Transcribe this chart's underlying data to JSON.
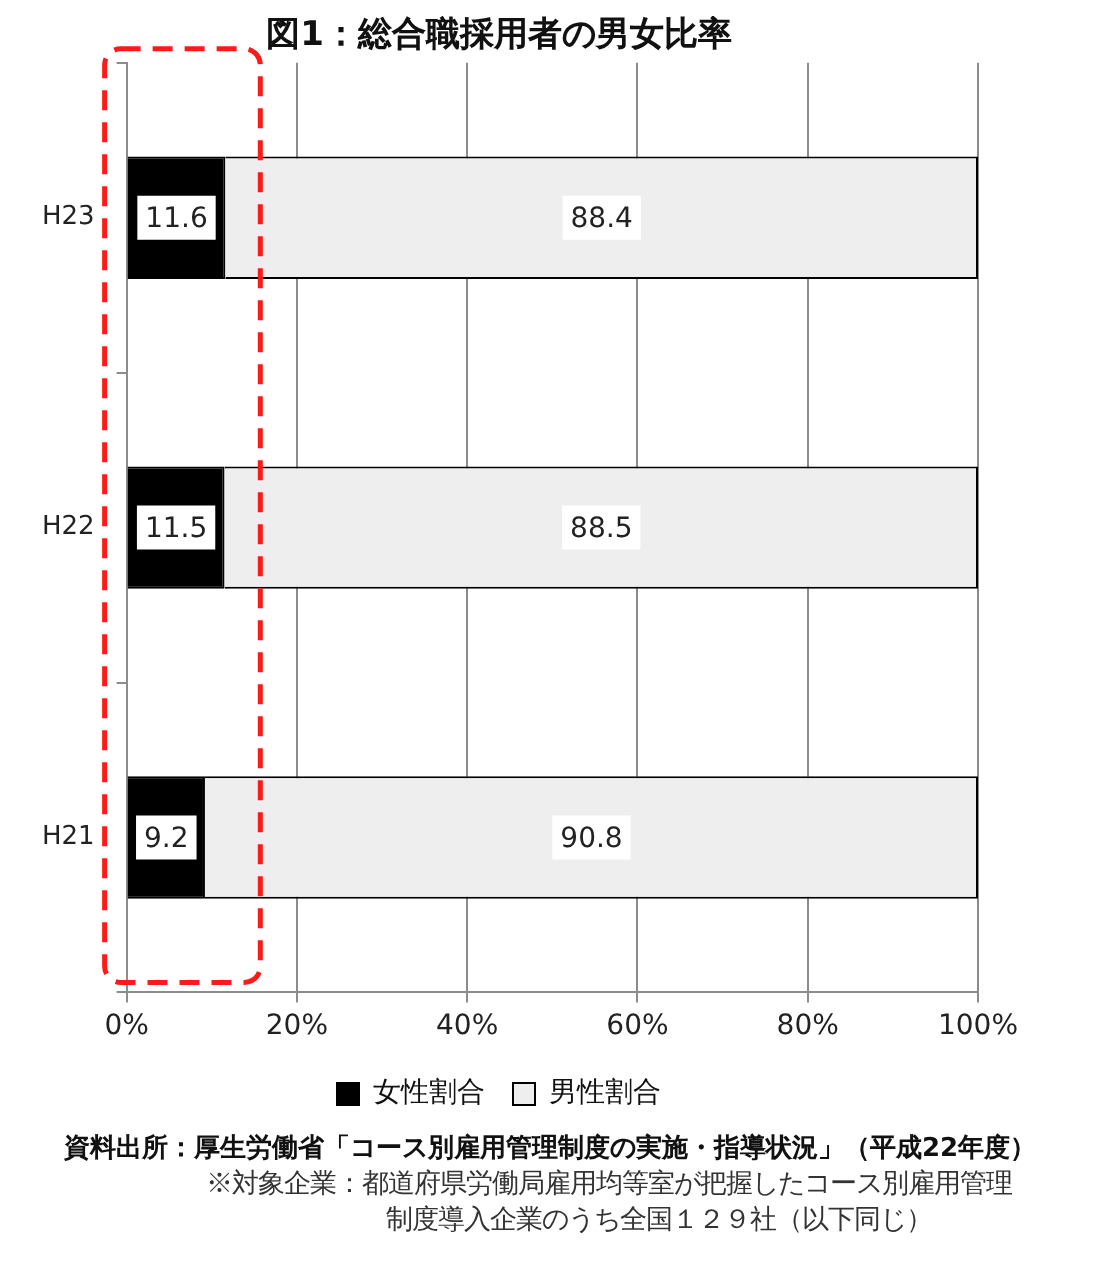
{
  "chart_data": {
    "type": "bar",
    "orientation": "horizontal",
    "stacked": true,
    "title": "図1：総合職採用者の男女比率",
    "categories": [
      "H23",
      "H22",
      "H21"
    ],
    "series": [
      {
        "name": "女性割合",
        "color": "#000000",
        "values": [
          11.6,
          11.5,
          9.2
        ]
      },
      {
        "name": "男性割合",
        "color": "#eeeeee",
        "values": [
          88.4,
          88.5,
          90.8
        ]
      }
    ],
    "xlim": [
      0,
      100
    ],
    "xticks": [
      {
        "value": 0,
        "label": "0%"
      },
      {
        "value": 20,
        "label": "20%"
      },
      {
        "value": 40,
        "label": "40%"
      },
      {
        "value": 60,
        "label": "60%"
      },
      {
        "value": 80,
        "label": "80%"
      },
      {
        "value": 100,
        "label": "100%"
      }
    ],
    "grid": "x",
    "legend": "bottom",
    "data_labels": true,
    "annotations": [
      "資料出所：厚生労働省「コース別雇用管理制度の実施・指導状況」（平成22年度）",
      "※対象企業：都道府県労働局雇用均等室が把握したコース別雇用管理制度導入企業のうち全国１２９社（以下同じ）"
    ]
  }
}
